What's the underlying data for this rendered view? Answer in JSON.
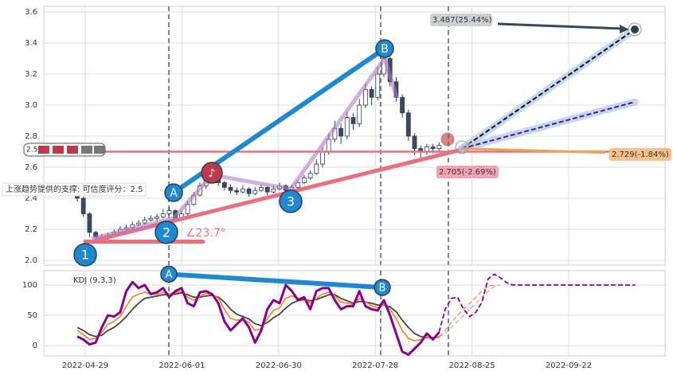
{
  "chart_data": [
    {
      "type": "candlestick",
      "ylim": [
        1.969,
        3.636
      ],
      "yticks": [
        {
          "value": 2,
          "label": "2.0"
        },
        2.2,
        2.4,
        2.6,
        2.8,
        {
          "value": 3,
          "label": "3.0"
        },
        3.2,
        3.4,
        3.6
      ],
      "grid": true,
      "up_color": "#ffffff",
      "down_color": "#3b4a63",
      "ohlc": [
        [
          2.45,
          2.46,
          2.38,
          2.4
        ],
        [
          2.4,
          2.41,
          2.28,
          2.3
        ],
        [
          2.3,
          2.31,
          2.15,
          2.18
        ],
        [
          2.18,
          2.19,
          2.12,
          2.15
        ],
        [
          2.15,
          2.17,
          2.12,
          2.14
        ],
        [
          2.14,
          2.18,
          2.13,
          2.16
        ],
        [
          2.16,
          2.2,
          2.15,
          2.18
        ],
        [
          2.18,
          2.22,
          2.17,
          2.2
        ],
        [
          2.2,
          2.23,
          2.19,
          2.21
        ],
        [
          2.21,
          2.25,
          2.2,
          2.23
        ],
        [
          2.23,
          2.26,
          2.22,
          2.24
        ],
        [
          2.24,
          2.28,
          2.23,
          2.26
        ],
        [
          2.26,
          2.29,
          2.25,
          2.27
        ],
        [
          2.27,
          2.3,
          2.25,
          2.28
        ],
        [
          2.28,
          2.33,
          2.27,
          2.3
        ],
        [
          2.3,
          2.34,
          2.29,
          2.32
        ],
        [
          2.32,
          2.33,
          2.25,
          2.27
        ],
        [
          2.27,
          2.32,
          2.26,
          2.3
        ],
        [
          2.3,
          2.38,
          2.29,
          2.36
        ],
        [
          2.36,
          2.44,
          2.35,
          2.42
        ],
        [
          2.42,
          2.5,
          2.41,
          2.48
        ],
        [
          2.48,
          2.54,
          2.46,
          2.52
        ],
        [
          2.52,
          2.58,
          2.5,
          2.55
        ],
        [
          2.55,
          2.56,
          2.48,
          2.5
        ],
        [
          2.5,
          2.51,
          2.45,
          2.47
        ],
        [
          2.47,
          2.49,
          2.43,
          2.45
        ],
        [
          2.45,
          2.47,
          2.42,
          2.44
        ],
        [
          2.44,
          2.48,
          2.43,
          2.46
        ],
        [
          2.46,
          2.47,
          2.41,
          2.43
        ],
        [
          2.43,
          2.47,
          2.42,
          2.45
        ],
        [
          2.45,
          2.49,
          2.44,
          2.47
        ],
        [
          2.47,
          2.48,
          2.42,
          2.44
        ],
        [
          2.44,
          2.48,
          2.43,
          2.46
        ],
        [
          2.46,
          2.5,
          2.45,
          2.48
        ],
        [
          2.48,
          2.49,
          2.43,
          2.45
        ],
        [
          2.45,
          2.49,
          2.44,
          2.47
        ],
        [
          2.47,
          2.52,
          2.46,
          2.5
        ],
        [
          2.5,
          2.55,
          2.49,
          2.53
        ],
        [
          2.53,
          2.58,
          2.52,
          2.56
        ],
        [
          2.56,
          2.65,
          2.55,
          2.62
        ],
        [
          2.62,
          2.73,
          2.6,
          2.7
        ],
        [
          2.7,
          2.82,
          2.68,
          2.78
        ],
        [
          2.78,
          2.9,
          2.76,
          2.85
        ],
        [
          2.85,
          2.88,
          2.75,
          2.8
        ],
        [
          2.8,
          2.96,
          2.78,
          2.92
        ],
        [
          2.92,
          2.95,
          2.84,
          2.88
        ],
        [
          2.88,
          3.04,
          2.86,
          3.0
        ],
        [
          3.0,
          3.14,
          2.98,
          3.1
        ],
        [
          3.1,
          3.12,
          3.0,
          3.05
        ],
        [
          3.05,
          3.25,
          3.03,
          3.2
        ],
        [
          3.2,
          3.33,
          3.18,
          3.3
        ],
        [
          3.3,
          3.32,
          3.12,
          3.15
        ],
        [
          3.15,
          3.18,
          3.02,
          3.05
        ],
        [
          3.05,
          3.07,
          2.92,
          2.95
        ],
        [
          2.95,
          2.97,
          2.77,
          2.8
        ],
        [
          2.8,
          2.82,
          2.68,
          2.72
        ],
        [
          2.72,
          2.74,
          2.66,
          2.7
        ],
        [
          2.7,
          2.75,
          2.68,
          2.73
        ],
        [
          2.73,
          2.75,
          2.69,
          2.72
        ],
        [
          2.72,
          2.76,
          2.7,
          2.74
        ]
      ],
      "support_level": {
        "value": 2.7,
        "color": "#e8707f",
        "label": "2.5"
      },
      "support_note": "上涨趋势提供的支撑: 可信度评分：2.5",
      "trend_line": {
        "color": "#e8707f",
        "values": [
          2.13,
          2.72
        ]
      },
      "base_line": {
        "color": "#e8707f",
        "value": 2.12
      },
      "angle_label": "∠23.7°",
      "pattern_line": {
        "color": "#b07cc6",
        "values": [
          2.14,
          2.27,
          2.55,
          2.46,
          3.3,
          3.05
        ]
      },
      "wave_line": {
        "color": "#1e88d0",
        "values": [
          2.436,
          3.364
        ]
      },
      "points": [
        {
          "label": "1",
          "value": 2.036
        },
        {
          "label": "2",
          "value": 2.18
        },
        {
          "label": "3",
          "value": 2.38
        },
        {
          "label": "A",
          "value": 2.436
        },
        {
          "label": "B",
          "value": 3.364
        },
        {
          "label": "♪",
          "value": 2.564
        }
      ],
      "projections": [
        {
          "color": "#111111",
          "values": [
            2.72,
            3.487
          ]
        },
        {
          "color": "#4b1a8a",
          "values": [
            2.72,
            3.02
          ]
        },
        {
          "color": "#f0a050",
          "values": [
            2.72,
            2.694
          ]
        }
      ],
      "targets": [
        {
          "text": "3.487(25.44%)",
          "value": 3.487,
          "color": "#ccd1d6"
        },
        {
          "text": "2.729(-1.84%)",
          "value": 2.729,
          "color": "#f5c08a"
        },
        {
          "text": "2.705(-2.69%)",
          "value": 2.705,
          "color": "#f4a3b3"
        }
      ]
    },
    {
      "type": "line",
      "title": "KDJ (9,3,3)",
      "ylim": [
        -17,
        123.7
      ],
      "yticks": [
        0,
        50,
        100
      ],
      "grid": true,
      "xtick_labels": [
        "2022-04-29",
        "2022-06-01",
        "2022-06-30",
        "2022-07-28",
        "2022-08-25",
        "2022-09-22"
      ],
      "series": [
        {
          "color": "#444444",
          "values": [
            30,
            25,
            18,
            15,
            17,
            25,
            30,
            38,
            48,
            60,
            70,
            78,
            80,
            82,
            84,
            84,
            85,
            87,
            84,
            80,
            80,
            82,
            83,
            80,
            72,
            60,
            52,
            48,
            44,
            36,
            33,
            38,
            46,
            52,
            62,
            70,
            74,
            76,
            74,
            76,
            80,
            84,
            84,
            78,
            74,
            70,
            73,
            72,
            70,
            67,
            67,
            64,
            56,
            42,
            30,
            20,
            15,
            13,
            13,
            14
          ],
          "projection": [
            14,
            20,
            30,
            40,
            50,
            60,
            70,
            80,
            90,
            98,
            100
          ]
        },
        {
          "color": "#f08c28",
          "values": [
            25,
            18,
            10,
            12,
            22,
            35,
            40,
            48,
            65,
            80,
            85,
            88,
            85,
            85,
            88,
            85,
            87,
            90,
            80,
            75,
            82,
            86,
            85,
            78,
            60,
            45,
            42,
            43,
            38,
            25,
            28,
            45,
            58,
            62,
            78,
            82,
            78,
            78,
            70,
            78,
            85,
            88,
            82,
            72,
            70,
            68,
            78,
            72,
            66,
            63,
            68,
            60,
            45,
            25,
            12,
            8,
            10,
            14,
            12,
            15
          ],
          "projection": [
            15,
            25,
            38,
            50,
            60,
            70,
            80,
            90,
            98,
            100
          ]
        },
        {
          "color": "#8b008b",
          "values": [
            15,
            10,
            2,
            5,
            30,
            50,
            48,
            55,
            90,
            105,
            95,
            100,
            85,
            88,
            95,
            80,
            90,
            95,
            70,
            65,
            88,
            90,
            85,
            70,
            40,
            25,
            35,
            45,
            30,
            5,
            25,
            60,
            75,
            70,
            100,
            90,
            75,
            80,
            60,
            90,
            95,
            95,
            75,
            60,
            65,
            65,
            90,
            65,
            60,
            58,
            75,
            50,
            20,
            -10,
            -15,
            -5,
            5,
            20,
            10,
            22
          ],
          "projection": [
            22,
            60,
            78,
            80,
            60,
            48,
            55,
            72,
            110,
            118,
            112,
            104,
            100,
            100,
            100,
            100,
            100,
            100,
            100,
            100,
            100,
            100,
            100,
            100,
            100,
            100,
            100,
            100,
            100,
            100,
            100,
            100,
            100
          ]
        }
      ],
      "wave_line": {
        "color": "#1e88d0",
        "values": [
          118,
          96
        ]
      },
      "points": [
        {
          "label": "A",
          "value": 118
        },
        {
          "label": "B",
          "value": 96
        }
      ]
    }
  ]
}
